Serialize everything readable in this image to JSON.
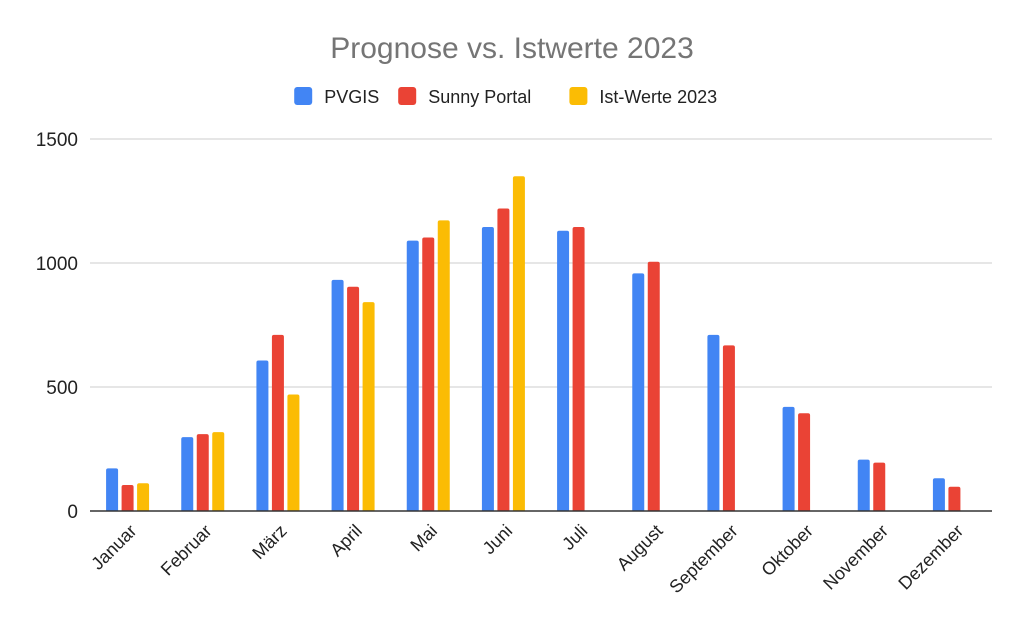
{
  "chart_data": {
    "type": "bar",
    "title": "Prognose vs. Istwerte 2023",
    "xlabel": "",
    "ylabel": "",
    "ylim": [
      0,
      1500
    ],
    "yticks": [
      0,
      500,
      1000,
      1500
    ],
    "grid": true,
    "legend_position": "top",
    "categories": [
      "Januar",
      "Februar",
      "März",
      "April",
      "Mai",
      "Juni",
      "Juli",
      "August",
      "September",
      "Oktober",
      "November",
      "Dezember"
    ],
    "series": [
      {
        "name": "PVGIS",
        "color": "#4285f4",
        "values": [
          172,
          298,
          607,
          932,
          1090,
          1145,
          1130,
          958,
          710,
          420,
          207,
          132
        ]
      },
      {
        "name": "Sunny Portal",
        "color": "#ea4335",
        "values": [
          105,
          310,
          710,
          904,
          1103,
          1220,
          1145,
          1005,
          668,
          394,
          195,
          98
        ]
      },
      {
        "name": "Ist-Werte 2023",
        "color": "#fbbc04",
        "values": [
          112,
          318,
          470,
          842,
          1172,
          1350,
          null,
          null,
          null,
          null,
          null,
          null
        ]
      }
    ]
  }
}
